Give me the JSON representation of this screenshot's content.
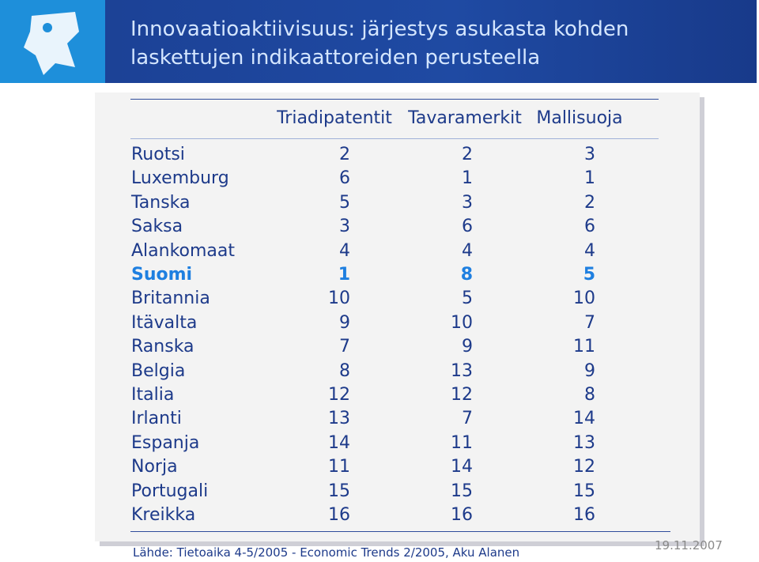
{
  "header": {
    "title_lines": [
      "Innovaatioaktiivisuus: järjestys asukasta kohden",
      "laskettujen indikaattoreiden perusteella"
    ]
  },
  "table": {
    "columns": [
      "Triadipatentit",
      "Tavaramerkit",
      "Mallisuoja"
    ],
    "rows": [
      [
        "Ruotsi",
        2,
        2,
        3
      ],
      [
        "Luxemburg",
        6,
        1,
        1
      ],
      [
        "Tanska",
        5,
        3,
        2
      ],
      [
        "Saksa",
        3,
        6,
        6
      ],
      [
        "Alankomaat",
        4,
        4,
        4
      ],
      [
        "Suomi",
        1,
        8,
        5
      ],
      [
        "Britannia",
        10,
        5,
        10
      ],
      [
        "Itävalta",
        9,
        10,
        7
      ],
      [
        "Ranska",
        7,
        9,
        11
      ],
      [
        "Belgia",
        8,
        13,
        9
      ],
      [
        "Italia",
        12,
        12,
        8
      ],
      [
        "Irlanti",
        13,
        7,
        14
      ],
      [
        "Espanja",
        14,
        11,
        13
      ],
      [
        "Norja",
        11,
        14,
        12
      ],
      [
        "Portugali",
        15,
        15,
        15
      ],
      [
        "Kreikka",
        16,
        16,
        16
      ]
    ],
    "highlight": "Suomi"
  },
  "footer": {
    "source": "Lähde: Tietoaika 4-5/2005 - Economic Trends 2/2005, Aku Alanen",
    "date": "19.11.2007"
  }
}
